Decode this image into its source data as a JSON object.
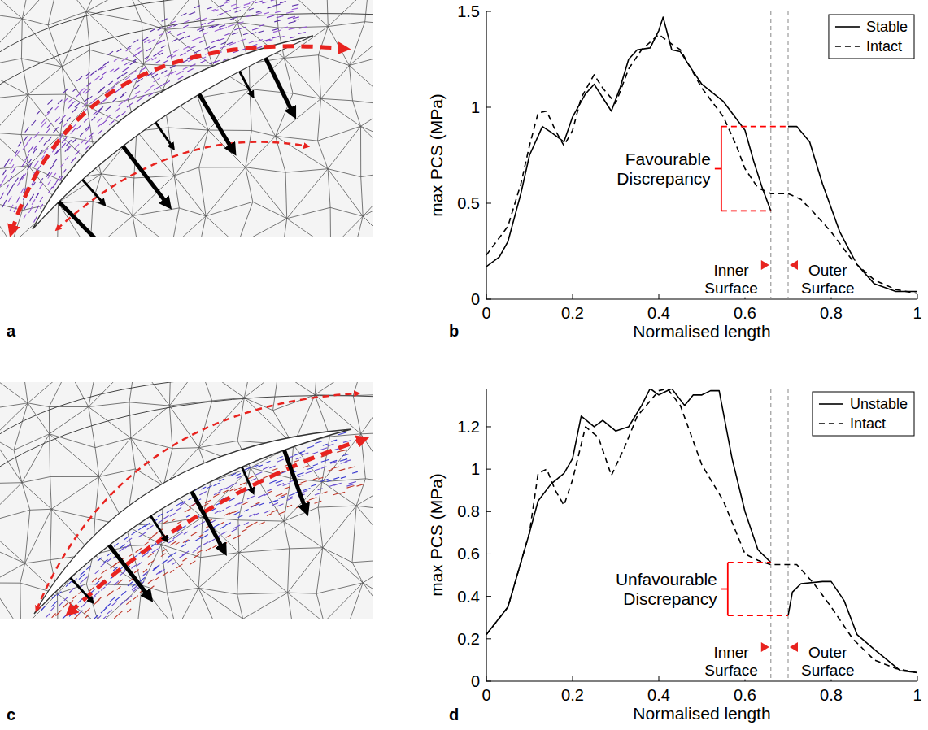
{
  "diagrams": [
    {
      "panel_label": "a"
    },
    {
      "panel_label": "c"
    }
  ],
  "chart_data": [
    {
      "type": "line",
      "panel_label": "b",
      "x_label": "Normalised length",
      "y_label": "max PCS (MPa)",
      "xlim": [
        0,
        1
      ],
      "xticks": [
        0,
        0.2,
        0.4,
        0.6,
        0.8,
        1
      ],
      "ylim": [
        0,
        1.5
      ],
      "yticks": [
        0,
        0.5,
        1,
        1.5
      ],
      "legend": "upper right",
      "series": [
        {
          "name": "Stable",
          "color": "#000000",
          "line_style": "solid",
          "x": [
            0,
            0.03,
            0.05,
            0.08,
            0.1,
            0.13,
            0.15,
            0.18,
            0.2,
            0.23,
            0.25,
            0.27,
            0.29,
            0.31,
            0.33,
            0.35,
            0.38,
            0.4,
            0.41,
            0.43,
            0.45,
            0.47,
            0.5,
            0.55,
            0.6,
            0.62,
            0.64,
            0.66,
            0.68,
            0.7,
            0.72,
            0.75,
            0.78,
            0.82,
            0.86,
            0.9,
            0.95,
            1
          ],
          "values": [
            0.17,
            0.22,
            0.3,
            0.55,
            0.75,
            0.9,
            0.87,
            0.82,
            0.95,
            1.07,
            1.12,
            1.05,
            0.98,
            1.1,
            1.25,
            1.3,
            1.31,
            1.4,
            1.47,
            1.3,
            1.29,
            1.22,
            1.12,
            1.03,
            0.88,
            0.72,
            0.58,
            0.46,
            null,
            0.9,
            0.9,
            0.82,
            0.6,
            0.35,
            0.18,
            0.08,
            0.04,
            0.04
          ]
        },
        {
          "name": "Intact",
          "color": "#000000",
          "line_style": "dashed",
          "x": [
            0,
            0.05,
            0.08,
            0.1,
            0.12,
            0.14,
            0.16,
            0.18,
            0.2,
            0.22,
            0.25,
            0.27,
            0.3,
            0.33,
            0.36,
            0.4,
            0.43,
            0.45,
            0.47,
            0.5,
            0.55,
            0.58,
            0.6,
            0.63,
            0.66,
            0.7,
            0.73,
            0.76,
            0.8,
            0.85,
            0.9,
            0.95,
            1
          ],
          "values": [
            0.23,
            0.38,
            0.6,
            0.8,
            0.97,
            0.98,
            0.88,
            0.8,
            0.88,
            1.05,
            1.17,
            1.1,
            1.02,
            1.2,
            1.3,
            1.38,
            1.33,
            1.3,
            1.22,
            1.1,
            0.95,
            0.8,
            0.68,
            0.58,
            0.55,
            0.55,
            0.52,
            0.45,
            0.35,
            0.2,
            0.1,
            0.05,
            0.03
          ]
        }
      ],
      "surfaces": [
        {
          "label": "Inner Surface",
          "x": 0.66
        },
        {
          "label": "Outer Surface",
          "x": 0.7
        }
      ],
      "annotations": [
        {
          "text": "Favourable Discrepancy",
          "color": "#ff0000",
          "x": 0.545,
          "y": [
            0.46,
            0.9
          ]
        }
      ]
    },
    {
      "type": "line",
      "panel_label": "d",
      "x_label": "Normalised length",
      "y_label": "max PCS (MPa)",
      "xlim": [
        0,
        1
      ],
      "xticks": [
        0,
        0.2,
        0.4,
        0.6,
        0.8,
        1
      ],
      "ylim": [
        0,
        1.38
      ],
      "yticks": [
        0,
        0.2,
        0.4,
        0.6,
        0.8,
        1,
        1.2
      ],
      "legend": "upper right",
      "series": [
        {
          "name": "Unstable",
          "color": "#000000",
          "line_style": "solid",
          "x": [
            0,
            0.05,
            0.1,
            0.12,
            0.15,
            0.18,
            0.2,
            0.22,
            0.25,
            0.27,
            0.3,
            0.33,
            0.36,
            0.38,
            0.4,
            0.43,
            0.46,
            0.48,
            0.5,
            0.52,
            0.54,
            0.57,
            0.6,
            0.63,
            0.66,
            0.68,
            0.7,
            0.71,
            0.73,
            0.78,
            0.8,
            0.83,
            0.86,
            0.9,
            0.93,
            0.96,
            1
          ],
          "values": [
            0.22,
            0.35,
            0.7,
            0.85,
            0.93,
            0.98,
            1.05,
            1.25,
            1.2,
            1.23,
            1.18,
            1.2,
            1.3,
            1.38,
            1.35,
            1.38,
            1.3,
            1.35,
            1.35,
            1.37,
            1.37,
            1.05,
            0.8,
            0.62,
            0.56,
            null,
            0.31,
            0.42,
            0.46,
            0.47,
            0.47,
            0.38,
            0.22,
            0.15,
            0.1,
            0.05,
            0.04
          ]
        },
        {
          "name": "Intact",
          "color": "#000000",
          "line_style": "dashed",
          "x": [
            0,
            0.05,
            0.1,
            0.12,
            0.14,
            0.16,
            0.18,
            0.2,
            0.23,
            0.26,
            0.29,
            0.32,
            0.35,
            0.4,
            0.42,
            0.45,
            0.5,
            0.55,
            0.6,
            0.63,
            0.66,
            0.7,
            0.72,
            0.76,
            0.8,
            0.85,
            0.9,
            0.95,
            1
          ],
          "values": [
            0.22,
            0.35,
            0.7,
            0.98,
            1.0,
            0.9,
            0.83,
            0.95,
            1.2,
            1.15,
            0.97,
            1.1,
            1.25,
            1.37,
            1.38,
            1.3,
            1.02,
            0.85,
            0.6,
            0.57,
            0.55,
            0.55,
            0.55,
            0.46,
            0.35,
            0.2,
            0.1,
            0.06,
            0.04
          ]
        }
      ],
      "surfaces": [
        {
          "label": "Inner Surface",
          "x": 0.66
        },
        {
          "label": "Outer Surface",
          "x": 0.7
        }
      ],
      "annotations": [
        {
          "text": "Unfavourable Discrepancy",
          "color": "#ff0000",
          "x": 0.56,
          "y": [
            0.56,
            0.31
          ]
        }
      ]
    }
  ]
}
